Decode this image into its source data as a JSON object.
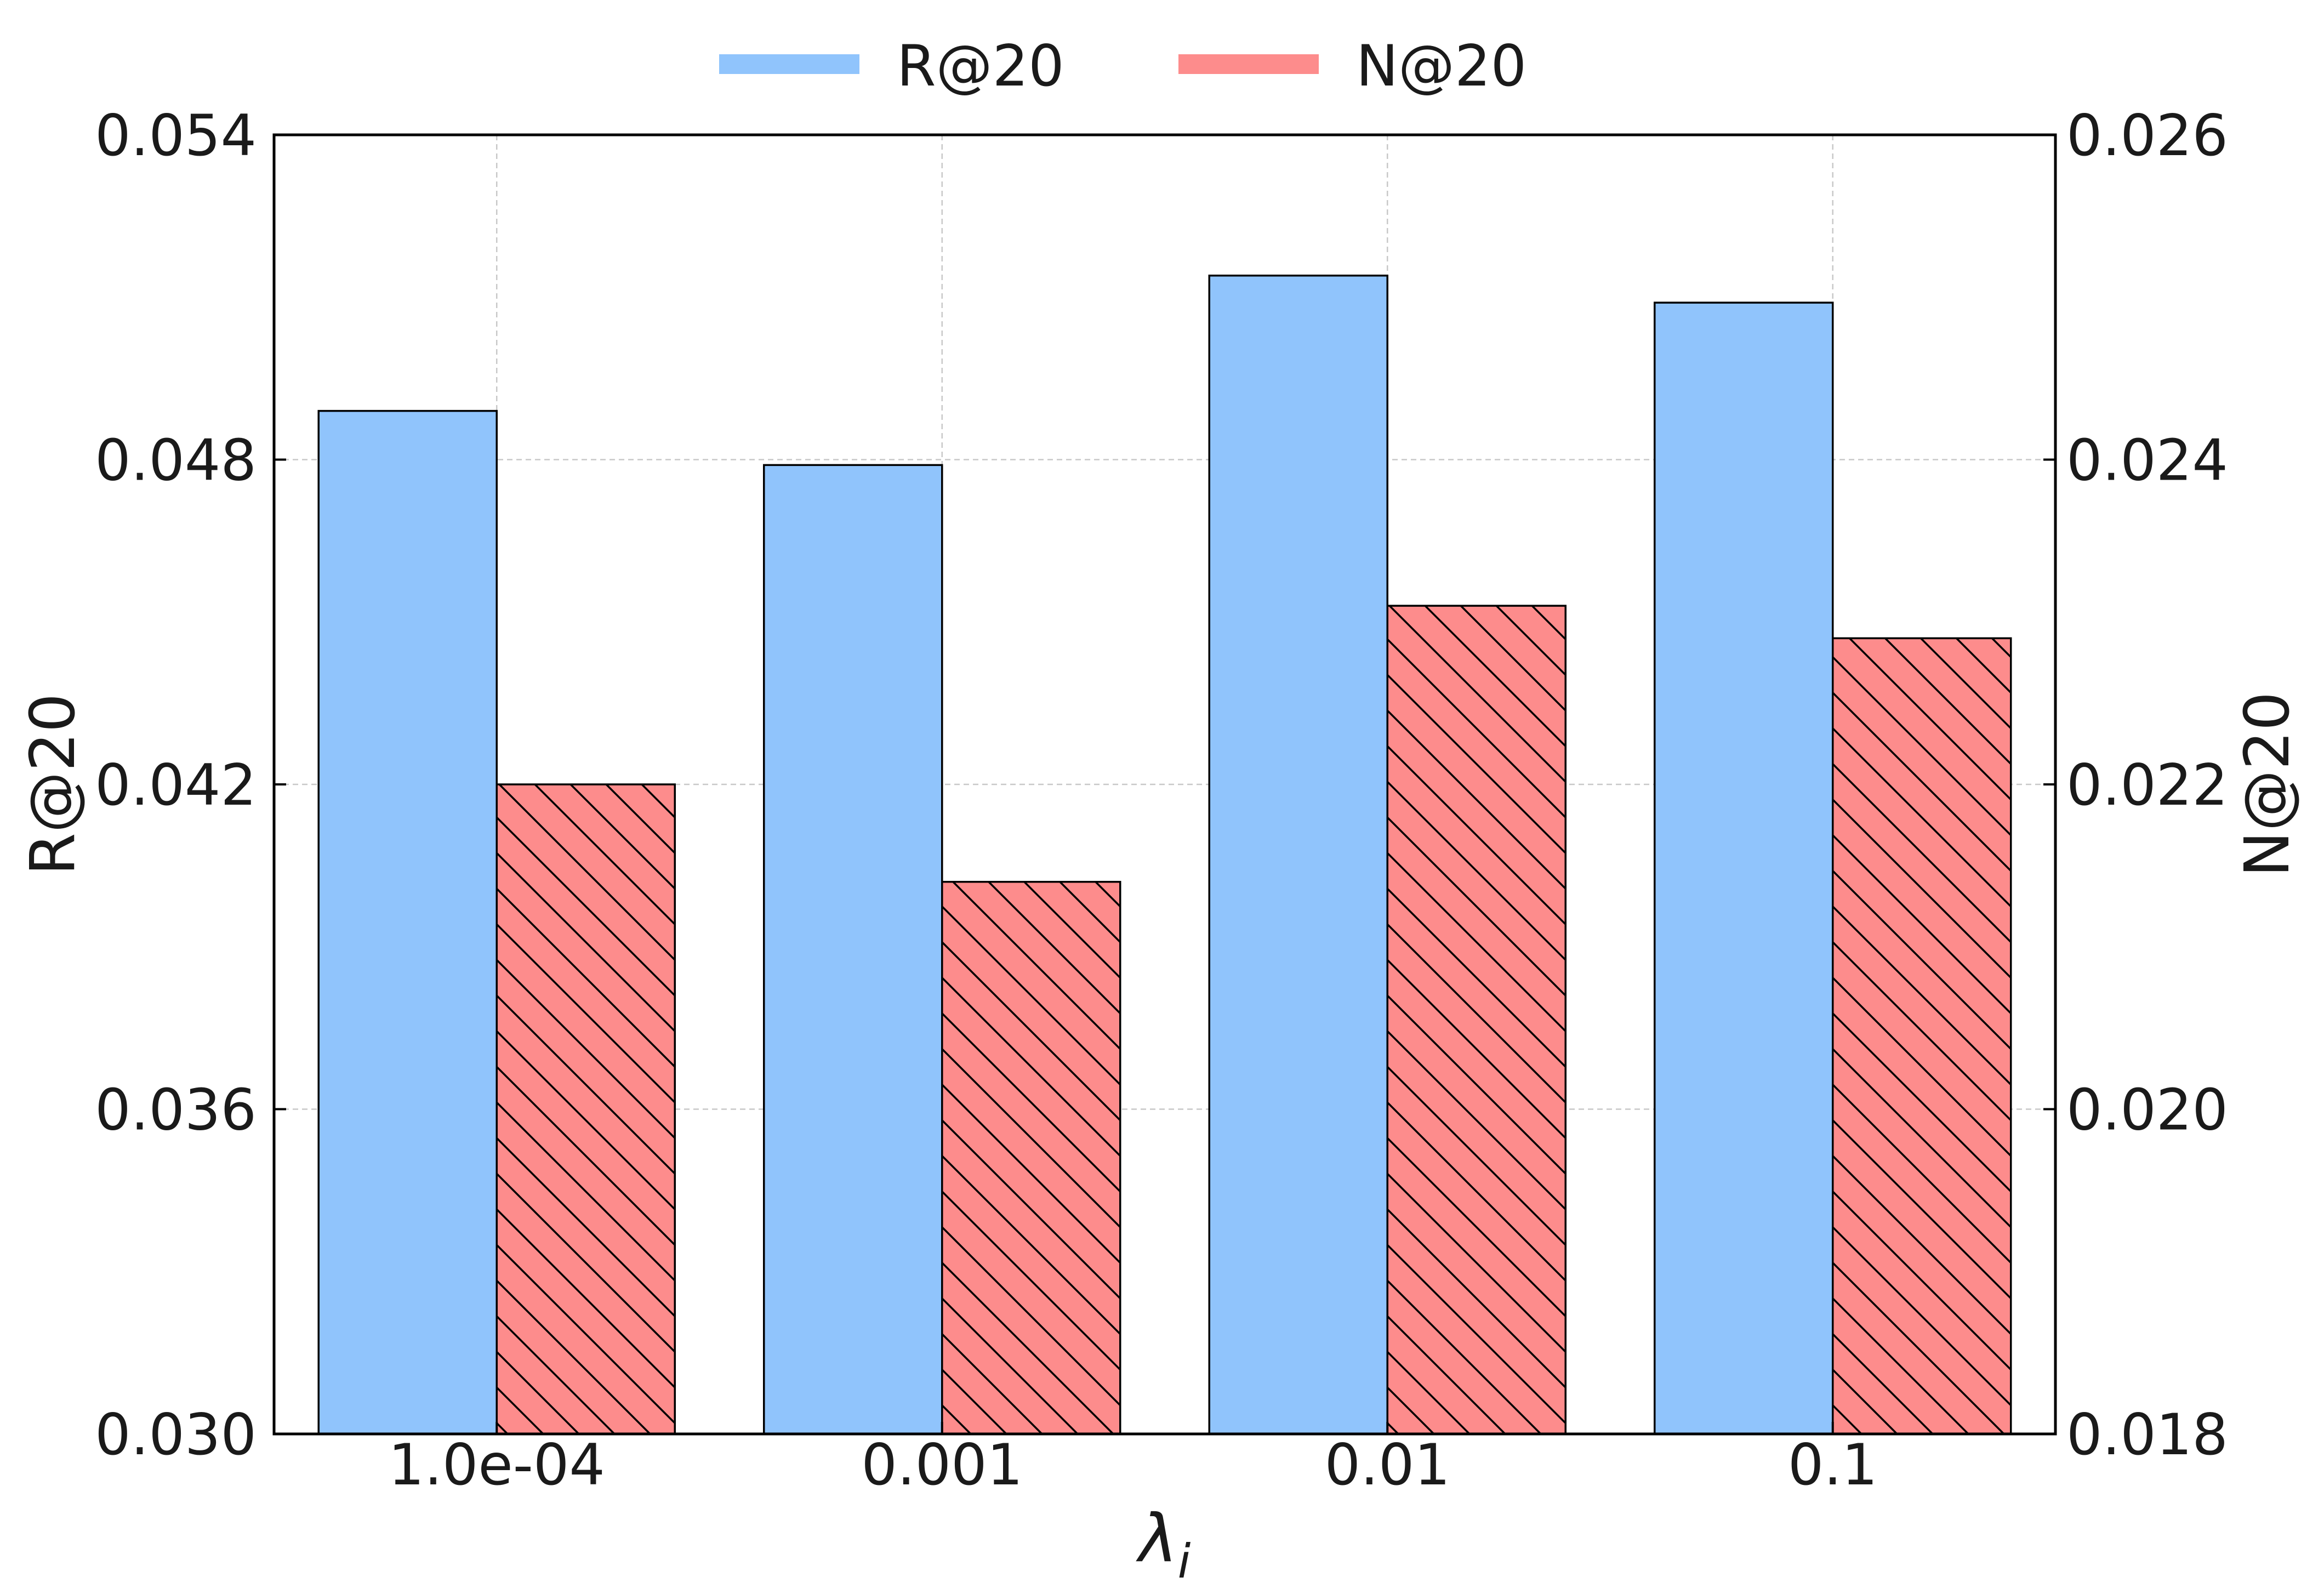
{
  "chart_data": {
    "type": "bar",
    "categories": [
      "1.0e-04",
      "0.001",
      "0.01",
      "0.1"
    ],
    "series": [
      {
        "name": "R@20",
        "axis": "left",
        "color": "#90c4fc",
        "hatch": false,
        "values": [
          0.0489,
          0.0479,
          0.0514,
          0.0509
        ]
      },
      {
        "name": "N@20",
        "axis": "right",
        "color": "#fd8c8c",
        "hatch": true,
        "values": [
          0.022,
          0.0214,
          0.0231,
          0.0229
        ]
      }
    ],
    "xlabel": {
      "main": "λ",
      "subscript": "i"
    },
    "ylabel_left": "R@20",
    "ylabel_right": "N@20",
    "ylim_left": [
      0.03,
      0.054
    ],
    "ylim_right": [
      0.018,
      0.026
    ],
    "yticks_left": [
      "0.030",
      "0.036",
      "0.042",
      "0.048",
      "0.054"
    ],
    "yticks_right": [
      "0.018",
      "0.020",
      "0.022",
      "0.024",
      "0.026"
    ],
    "grid": true,
    "legend_position": "top-center"
  }
}
